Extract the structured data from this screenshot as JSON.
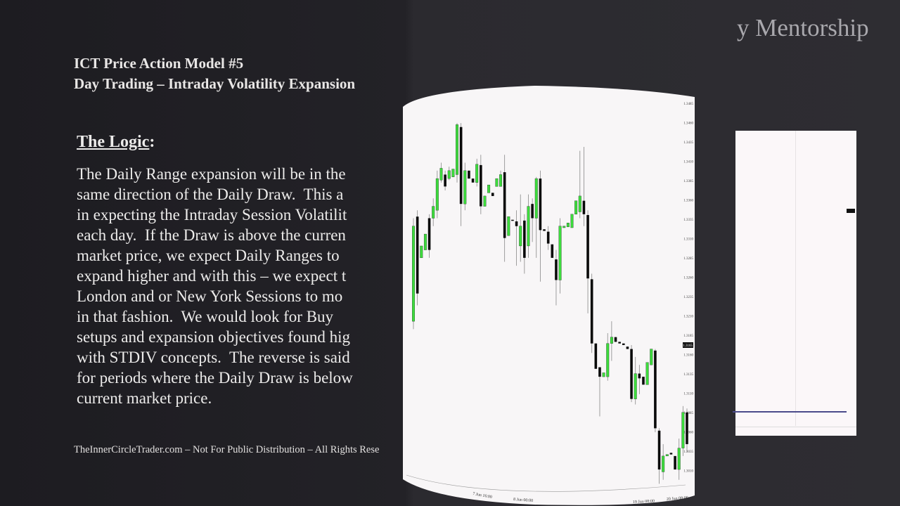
{
  "slide": {
    "title_line1": "ICT Price Action Model #5",
    "title_line2": "Day Trading – Intraday Volatility Expansion",
    "section_heading": "The Logic",
    "section_colon": ":",
    "paragraph_lines": [
      "The Daily Range expansion will be in the",
      "same direction of the Daily Draw.  This a",
      "in expecting the Intraday Session Volatilit",
      "each day.  If the Draw is above the curren",
      "market price, we expect Daily Ranges to",
      "expand higher and with this – we expect t",
      "London and or New York Sessions to mo",
      "in that fashion.  We would look for Buy",
      "setups and expansion objectives found hig",
      "with STDIV concepts.  The reverse is said",
      "for periods where the Daily Draw is below",
      "current market price."
    ],
    "footer": "TheInnerCircleTrader.com – Not For Public Distribution – All Rights Rese",
    "brand": "y Mentorship"
  },
  "chart_data": {
    "type": "candlestick",
    "colors": {
      "bull": "#3ddc3d",
      "bear": "#0a0a0a",
      "background": "#f8f6f7"
    },
    "ylim": [
      1.3,
      1.349
    ],
    "y_ticks": [
      "1.3485",
      "1.3460",
      "1.3435",
      "1.3410",
      "1.3385",
      "1.3360",
      "1.3335",
      "1.3310",
      "1.3285",
      "1.3260",
      "1.3235",
      "1.3210",
      "1.3185",
      "1.3160",
      "1.3135",
      "1.3110",
      "1.3085",
      "1.3060",
      "1.3035",
      "1.3010"
    ],
    "current_price_label": "1.3165",
    "x_tick_labels": [
      "7 Jun 16:00",
      "8 Jun 00:00",
      "19 Jun 08:00",
      "20 Jun 08:00"
    ],
    "candles": [
      [
        1.321,
        1.334,
        1.32,
        1.333
      ],
      [
        1.3342,
        1.335,
        1.323,
        1.3245
      ],
      [
        1.329,
        1.3305,
        1.329,
        1.3305
      ],
      [
        1.33,
        1.332,
        1.33,
        1.332
      ],
      [
        1.334,
        1.3345,
        1.329,
        1.33
      ],
      [
        1.334,
        1.3365,
        1.333,
        1.3355
      ],
      [
        1.335,
        1.34,
        1.334,
        1.339
      ],
      [
        1.3388,
        1.341,
        1.3385,
        1.3403
      ],
      [
        1.3395,
        1.34,
        1.3375,
        1.338
      ],
      [
        1.339,
        1.3405,
        1.3388,
        1.34
      ],
      [
        1.3392,
        1.3402,
        1.3392,
        1.3402
      ],
      [
        1.3395,
        1.346,
        1.3385,
        1.3458
      ],
      [
        1.3455,
        1.346,
        1.333,
        1.3358
      ],
      [
        1.3358,
        1.341,
        1.335,
        1.34
      ],
      [
        1.34,
        1.34,
        1.339,
        1.339
      ],
      [
        1.339,
        1.339,
        1.3385,
        1.3385
      ],
      [
        1.3385,
        1.3415,
        1.338,
        1.3408
      ],
      [
        1.3407,
        1.342,
        1.3345,
        1.3355
      ],
      [
        1.3355,
        1.3368,
        1.3355,
        1.3368
      ],
      [
        1.3372,
        1.3382,
        1.3372,
        1.3382
      ],
      [
        1.3372,
        1.3372,
        1.3368,
        1.3368
      ],
      [
        1.338,
        1.339,
        1.338,
        1.339
      ],
      [
        1.338,
        1.34,
        1.338,
        1.3395
      ],
      [
        1.3398,
        1.342,
        1.3285,
        1.3315
      ],
      [
        1.3318,
        1.3342,
        1.3318,
        1.3342
      ],
      [
        1.3338,
        1.3338,
        1.3337,
        1.3337
      ],
      [
        1.3336,
        1.335,
        1.328,
        1.333
      ],
      [
        1.3305,
        1.337,
        1.3285,
        1.333
      ],
      [
        1.3337,
        1.3345,
        1.327,
        1.329
      ],
      [
        1.3305,
        1.337,
        1.329,
        1.3355
      ],
      [
        1.3358,
        1.3365,
        1.331,
        1.334
      ],
      [
        1.334,
        1.3392,
        1.329,
        1.339
      ],
      [
        1.339,
        1.34,
        1.326,
        1.3325
      ],
      [
        1.3326,
        1.3326,
        1.3324,
        1.3324
      ],
      [
        1.3323,
        1.333,
        1.33,
        1.3308
      ],
      [
        1.3307,
        1.3307,
        1.329,
        1.329
      ],
      [
        1.3288,
        1.33,
        1.323,
        1.3262
      ],
      [
        1.3262,
        1.334,
        1.3245,
        1.333
      ],
      [
        1.3328,
        1.333,
        1.3328,
        1.333
      ],
      [
        1.3329,
        1.3334,
        1.3329,
        1.3334
      ],
      [
        1.3328,
        1.3345,
        1.3328,
        1.3345
      ],
      [
        1.3345,
        1.3362,
        1.3345,
        1.3362
      ],
      [
        1.3348,
        1.3425,
        1.334,
        1.3368
      ],
      [
        1.3362,
        1.343,
        1.333,
        1.3345
      ],
      [
        1.3344,
        1.335,
        1.322,
        1.3264
      ],
      [
        1.3263,
        1.327,
        1.317,
        1.3182
      ],
      [
        1.3182,
        1.3182,
        1.315,
        1.315
      ],
      [
        1.3152,
        1.3152,
        1.309,
        1.314
      ],
      [
        1.314,
        1.3145,
        1.314,
        1.3145
      ],
      [
        1.314,
        1.3195,
        1.3135,
        1.3182
      ],
      [
        1.3182,
        1.321,
        1.316,
        1.319
      ],
      [
        1.319,
        1.319,
        1.3184,
        1.3184
      ],
      [
        1.3184,
        1.3184,
        1.3182,
        1.3182
      ],
      [
        1.3182,
        1.3182,
        1.318,
        1.318
      ],
      [
        1.3178,
        1.3178,
        1.3175,
        1.3175
      ],
      [
        1.3175,
        1.318,
        1.3108,
        1.3112
      ],
      [
        1.3112,
        1.3165,
        1.3105,
        1.3144
      ],
      [
        1.3144,
        1.3155,
        1.3118,
        1.3138
      ],
      [
        1.314,
        1.314,
        1.313,
        1.313
      ],
      [
        1.313,
        1.3158,
        1.313,
        1.3158
      ],
      [
        1.3155,
        1.3175,
        1.3155,
        1.3175
      ],
      [
        1.3173,
        1.3175,
        1.307,
        1.3075
      ],
      [
        1.3072,
        1.3075,
        1.3005,
        1.3023
      ],
      [
        1.302,
        1.3055,
        1.301,
        1.304
      ],
      [
        1.304,
        1.3042,
        1.304,
        1.3042
      ],
      [
        1.3044,
        1.3044,
        1.3042,
        1.3042
      ],
      [
        1.304,
        1.304,
        1.3023,
        1.3023
      ],
      [
        1.3023,
        1.3062,
        1.301,
        1.305
      ],
      [
        1.305,
        1.3103,
        1.304,
        1.3095
      ],
      [
        1.3095,
        1.31,
        1.3045,
        1.3055
      ]
    ]
  }
}
